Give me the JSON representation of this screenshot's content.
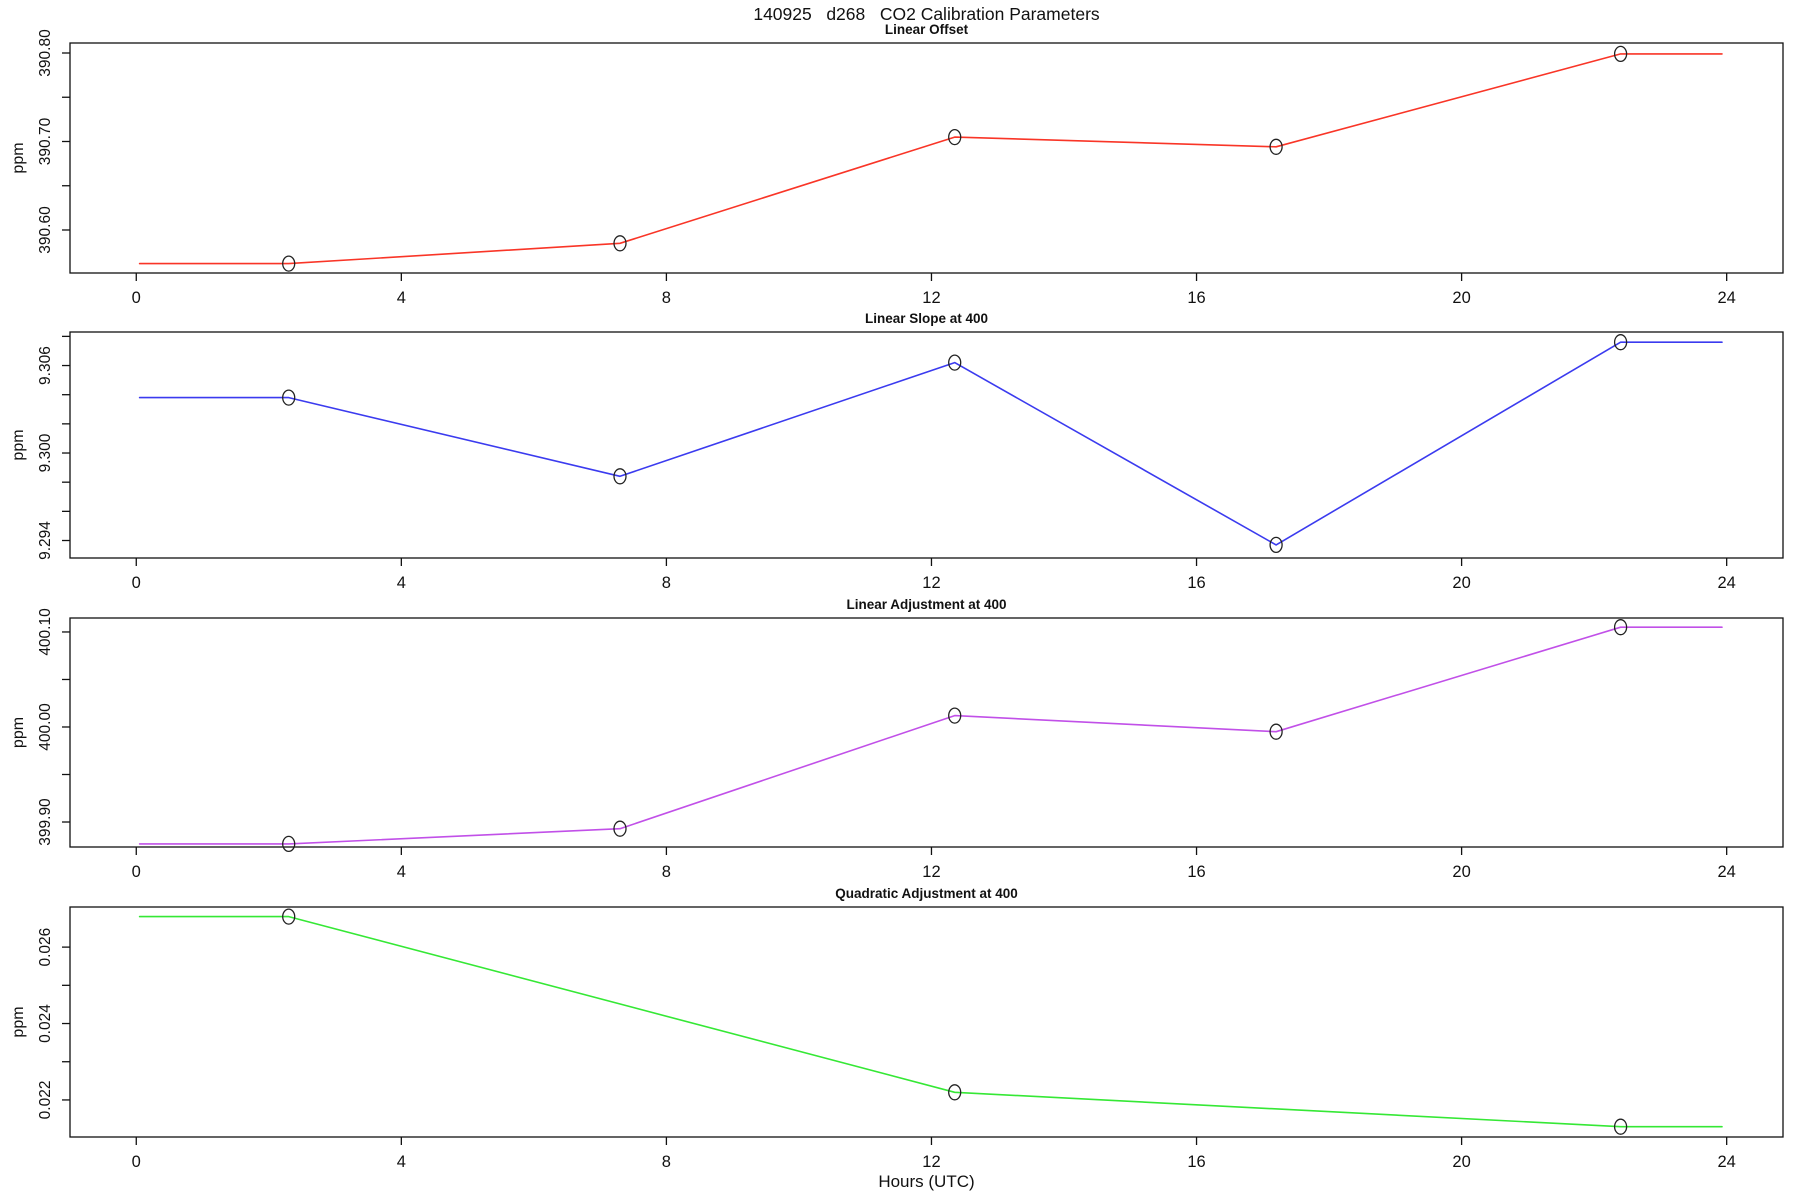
{
  "title": "140925   d268   CO2 Calibration Parameters",
  "x_axis_title": "Hours (UTC)",
  "x_ticks": [
    0,
    4,
    8,
    12,
    16,
    20,
    24
  ],
  "x_tick_labels": [
    "0",
    "4",
    "8",
    "12",
    "16",
    "20",
    "24"
  ],
  "xlim": [
    -1.0,
    24.85
  ],
  "axis_color": "#111111",
  "marker_color": "#222222",
  "chart_data": [
    {
      "type": "line",
      "title": "Linear Offset",
      "ylabel": "ppm",
      "color": "#f93527",
      "x": [
        0.05,
        2.3,
        7.3,
        12.35,
        17.2,
        22.4,
        23.93
      ],
      "y": [
        390.562,
        390.562,
        390.585,
        390.705,
        390.694,
        390.799,
        390.799
      ],
      "marker_indices": [
        1,
        2,
        3,
        4,
        5
      ],
      "y_ticks": [
        390.6,
        390.65,
        390.7,
        390.75,
        390.8
      ],
      "y_tick_labels": [
        "390.60",
        "",
        "390.70",
        "",
        "390.80"
      ],
      "ylim": [
        390.5514,
        390.8113
      ]
    },
    {
      "type": "line",
      "title": "Linear Slope at 400",
      "ylabel": "ppm",
      "color": "#3b3bef",
      "x": [
        0.05,
        2.3,
        7.3,
        12.35,
        17.2,
        22.4,
        23.93
      ],
      "y": [
        9.3038,
        9.3038,
        9.2984,
        9.3062,
        9.2937,
        9.3076,
        9.3076
      ],
      "marker_indices": [
        1,
        2,
        3,
        4,
        5
      ],
      "y_ticks": [
        9.294,
        9.296,
        9.298,
        9.3,
        9.302,
        9.304,
        9.306,
        9.308
      ],
      "y_tick_labels": [
        "9.294",
        "",
        "",
        "9.300",
        "",
        "",
        "9.306",
        ""
      ],
      "ylim": [
        9.2928,
        9.3083
      ]
    },
    {
      "type": "line",
      "title": "Linear Adjustment at 400",
      "ylabel": "ppm",
      "color": "#c150e8",
      "x": [
        0.05,
        2.3,
        7.3,
        12.35,
        17.2,
        22.4,
        23.93
      ],
      "y": [
        399.877,
        399.877,
        399.893,
        400.012,
        399.995,
        400.105,
        400.105
      ],
      "marker_indices": [
        1,
        2,
        3,
        4,
        5
      ],
      "y_ticks": [
        399.9,
        399.95,
        400.0,
        400.05,
        400.1
      ],
      "y_tick_labels": [
        "399.90",
        "",
        "400.00",
        "",
        "400.10"
      ],
      "ylim": [
        399.8737,
        400.1147
      ]
    },
    {
      "type": "line",
      "title": "Quadratic Adjustment at 400",
      "ylabel": "ppm",
      "color": "#35e835",
      "x": [
        0.05,
        2.3,
        12.35,
        22.4,
        23.93
      ],
      "y": [
        0.0268,
        0.0268,
        0.0222,
        0.0213,
        0.0213
      ],
      "marker_indices": [
        1,
        2,
        3
      ],
      "y_ticks": [
        0.022,
        0.023,
        0.024,
        0.025,
        0.026
      ],
      "y_tick_labels": [
        "0.022",
        "",
        "0.024",
        "",
        "0.026"
      ],
      "ylim": [
        0.02103,
        0.02705
      ]
    }
  ]
}
